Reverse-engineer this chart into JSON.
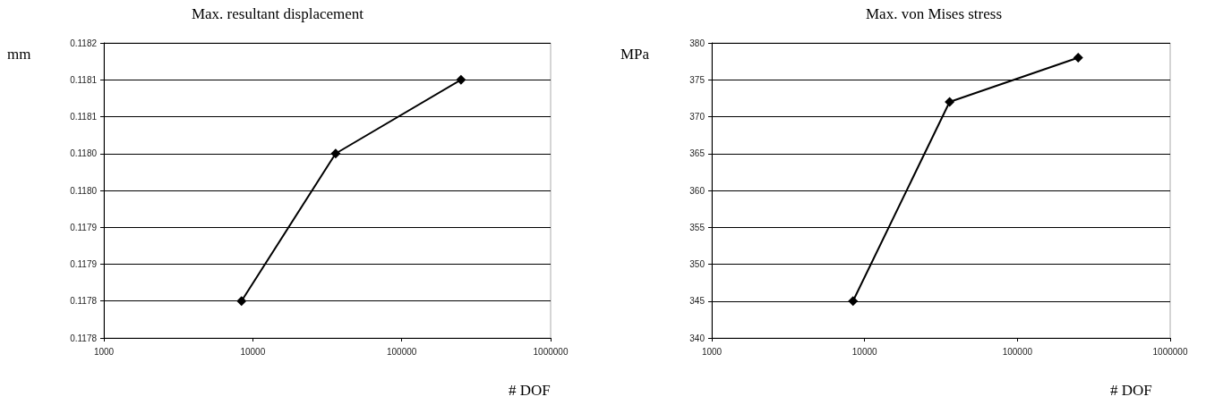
{
  "chart_data": [
    {
      "type": "line",
      "title": "Max. resultant displacement",
      "xlabel": "# DOF",
      "ylabel": "mm",
      "log": "x",
      "grid": "y",
      "marker": "diamond",
      "line_style": "solid",
      "x": [
        8400,
        36000,
        250000
      ],
      "series": [
        {
          "color": "#000000",
          "values": [
            0.1178,
            0.118,
            0.1181
          ]
        }
      ],
      "xlim": [
        1000,
        1000000
      ],
      "xticks": [
        1000,
        10000,
        100000,
        1000000
      ],
      "ylim": [
        0.11775,
        0.11815
      ],
      "yticks": [
        {
          "value": 0.11775,
          "label": "0.1178"
        },
        {
          "value": 0.1178,
          "label": "0.1178"
        },
        {
          "value": 0.11785,
          "label": "0.1179"
        },
        {
          "value": 0.1179,
          "label": "0.1179"
        },
        {
          "value": 0.11795,
          "label": "0.1180"
        },
        {
          "value": 0.118,
          "label": "0.1180"
        },
        {
          "value": 0.11805,
          "label": "0.1181"
        },
        {
          "value": 0.1181,
          "label": "0.1181"
        },
        {
          "value": 0.11815,
          "label": "0.1182"
        }
      ]
    },
    {
      "type": "line",
      "title": "Max. von Mises stress",
      "xlabel": "# DOF",
      "ylabel": "MPa",
      "log": "x",
      "grid": "y",
      "marker": "diamond",
      "line_style": "solid",
      "x": [
        8400,
        36000,
        250000
      ],
      "series": [
        {
          "color": "#000000",
          "values": [
            345,
            372,
            378
          ]
        }
      ],
      "xlim": [
        1000,
        1000000
      ],
      "xticks": [
        1000,
        10000,
        100000,
        1000000
      ],
      "ylim": [
        340,
        380
      ],
      "yticks": [
        340,
        345,
        350,
        355,
        360,
        365,
        370,
        375,
        380
      ]
    }
  ]
}
